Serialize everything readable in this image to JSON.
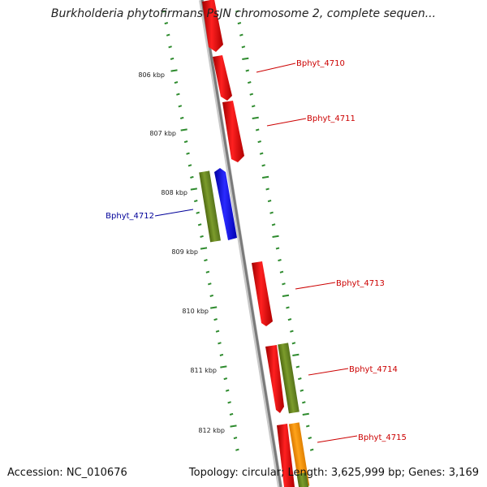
{
  "title": "Burkholderia phytofirmans PsJN chromosome 2, complete sequen...",
  "footer": {
    "accession": "Accession: NC_010676",
    "summary": "Topology: circular; Length: 3,625,999 bp; Genes: 3,169"
  },
  "ruler": {
    "ticks": [
      {
        "label": "806 kbp"
      },
      {
        "label": "807 kbp"
      },
      {
        "label": "808 kbp"
      },
      {
        "label": "809 kbp"
      },
      {
        "label": "810 kbp"
      },
      {
        "label": "811 kbp"
      },
      {
        "label": "812 kbp"
      }
    ]
  },
  "genes": [
    {
      "name": "Bphyt_4710",
      "color": "#e00000"
    },
    {
      "name": "Bphyt_4711",
      "color": "#e00000"
    },
    {
      "name": "Bphyt_4712",
      "color": "#0000cc"
    },
    {
      "name": "Bphyt_4713",
      "color": "#e00000"
    },
    {
      "name": "Bphyt_4714",
      "color": "#e00000"
    },
    {
      "name": "Bphyt_4715",
      "color": "#e00000"
    }
  ],
  "colors": {
    "forward_strand": "#ff0000",
    "reverse_strand": "#0000ff",
    "cog_green": "#6b8e23",
    "cog_orange": "#ff9900",
    "backbone": "#888888",
    "tick": "#2e8b2e",
    "label_red": "#cc0000",
    "label_blue": "#000099"
  }
}
